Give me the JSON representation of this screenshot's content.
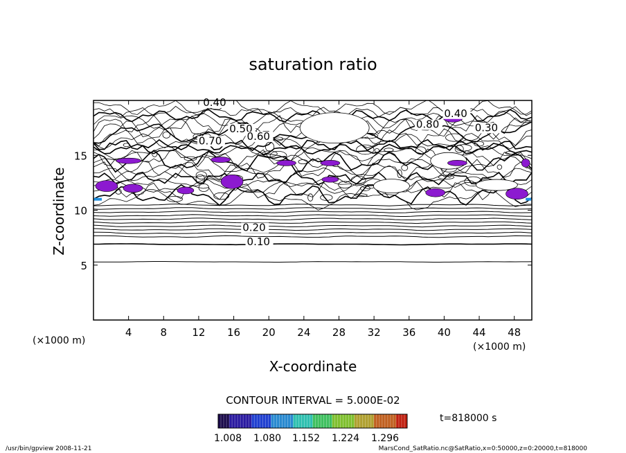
{
  "chart_data": {
    "type": "contour",
    "title": "saturation ratio",
    "xlabel": "X-coordinate",
    "ylabel": "Z-coordinate",
    "x_unit_left": "(×1000 m)",
    "x_unit_right": "(×1000 m)",
    "xlim": [
      0,
      50
    ],
    "ylim": [
      0,
      20
    ],
    "x_ticks": [
      4,
      8,
      12,
      16,
      20,
      24,
      28,
      32,
      36,
      40,
      44,
      48
    ],
    "y_ticks": [
      5,
      10,
      15
    ],
    "contour_interval_text": "CONTOUR INTERVAL = 5.000E-02",
    "contour_interval": 0.05,
    "contour_labels": [
      {
        "text": "0.10",
        "x": 17.5,
        "z": 6.8
      },
      {
        "text": "0.20",
        "x": 17.0,
        "z": 8.1
      },
      {
        "text": "0.40",
        "x": 12.5,
        "z": 19.5
      },
      {
        "text": "0.50",
        "x": 15.5,
        "z": 17.1
      },
      {
        "text": "0.60",
        "x": 17.5,
        "z": 16.4
      },
      {
        "text": "0.70",
        "x": 12.0,
        "z": 16.0
      },
      {
        "text": "0.40",
        "x": 40.0,
        "z": 18.5
      },
      {
        "text": "0.80",
        "x": 36.8,
        "z": 17.5
      },
      {
        "text": "0.30",
        "x": 43.5,
        "z": 17.2
      }
    ],
    "colorbar": {
      "tick_labels": [
        "1.008",
        "1.080",
        "1.152",
        "1.224",
        "1.296"
      ],
      "colors": [
        "#1a0a4a",
        "#2a1aa0",
        "#2040d0",
        "#2a8ad0",
        "#30c0b0",
        "#40c060",
        "#80c030",
        "#b0a030",
        "#c06020",
        "#c02010"
      ]
    },
    "time_text": "t=818000 s",
    "footer_left": "/usr/bin/gpview   2008-11-21",
    "footer_right": "MarsCond_SatRatio.nc@SatRatio,x=0:50000,z=0:20000,t=818000",
    "supersaturated_color": "#8c1ad0"
  }
}
